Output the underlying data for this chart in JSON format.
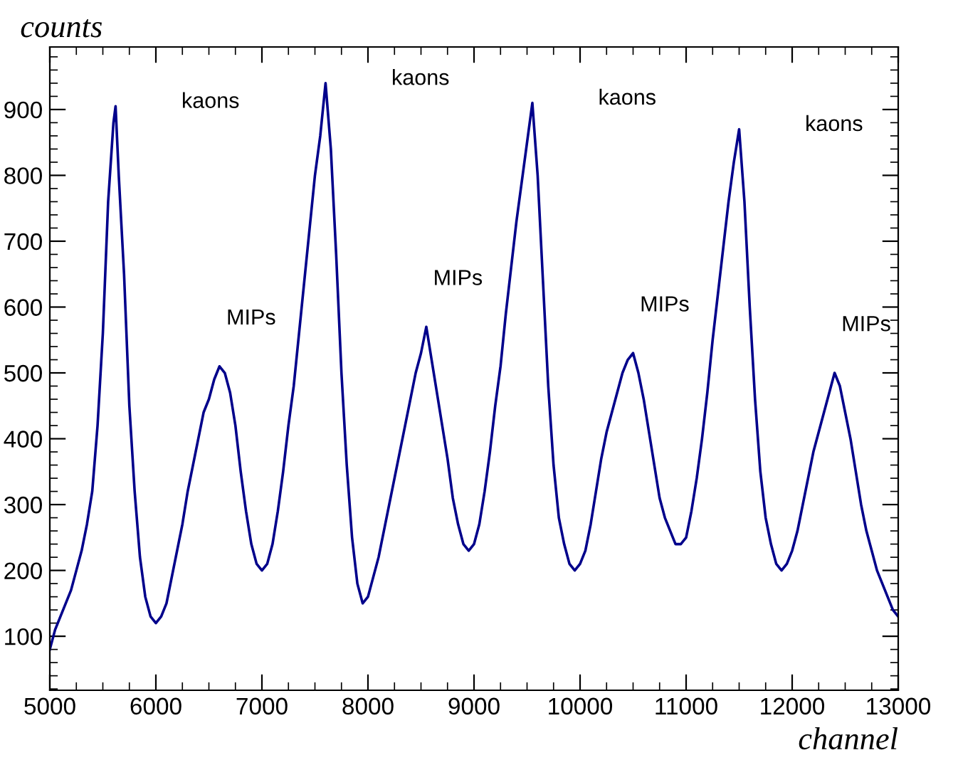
{
  "chart_data": {
    "type": "line",
    "xlabel": "channel",
    "ylabel": "counts",
    "xlim": [
      5000,
      13000
    ],
    "ylim": [
      18,
      995
    ],
    "xticks": [
      5000,
      6000,
      7000,
      8000,
      9000,
      10000,
      11000,
      12000,
      13000
    ],
    "yticks": [
      100,
      200,
      300,
      400,
      500,
      600,
      700,
      800,
      900
    ],
    "grid": false,
    "legend": false,
    "marker": "none",
    "line_style": "solid",
    "series": [
      {
        "color": "#00008b",
        "x": [
          5000,
          5050,
          5100,
          5150,
          5200,
          5250,
          5300,
          5350,
          5400,
          5450,
          5500,
          5550,
          5600,
          5620,
          5650,
          5700,
          5750,
          5800,
          5850,
          5900,
          5950,
          6000,
          6050,
          6100,
          6150,
          6200,
          6250,
          6300,
          6350,
          6400,
          6450,
          6500,
          6550,
          6600,
          6650,
          6700,
          6750,
          6800,
          6850,
          6900,
          6950,
          7000,
          7050,
          7100,
          7150,
          7200,
          7250,
          7300,
          7350,
          7400,
          7450,
          7500,
          7550,
          7600,
          7650,
          7700,
          7750,
          7800,
          7850,
          7900,
          7950,
          8000,
          8050,
          8100,
          8150,
          8200,
          8250,
          8300,
          8350,
          8400,
          8450,
          8500,
          8550,
          8600,
          8650,
          8700,
          8750,
          8800,
          8850,
          8900,
          8950,
          9000,
          9050,
          9100,
          9150,
          9200,
          9250,
          9300,
          9350,
          9400,
          9450,
          9500,
          9550,
          9600,
          9650,
          9700,
          9750,
          9800,
          9850,
          9900,
          9950,
          10000,
          10050,
          10100,
          10150,
          10200,
          10250,
          10300,
          10350,
          10400,
          10450,
          10500,
          10550,
          10600,
          10650,
          10700,
          10750,
          10800,
          10850,
          10900,
          10950,
          11000,
          11050,
          11100,
          11150,
          11200,
          11250,
          11300,
          11350,
          11400,
          11450,
          11500,
          11550,
          11600,
          11650,
          11700,
          11750,
          11800,
          11850,
          11900,
          11950,
          12000,
          12050,
          12100,
          12150,
          12200,
          12250,
          12300,
          12350,
          12400,
          12450,
          12500,
          12550,
          12600,
          12650,
          12700,
          12750,
          12800,
          12850,
          12900,
          12950,
          13000
        ],
        "values": [
          80,
          110,
          130,
          150,
          170,
          200,
          230,
          270,
          320,
          420,
          560,
          760,
          880,
          905,
          800,
          650,
          450,
          320,
          220,
          160,
          130,
          120,
          130,
          150,
          190,
          230,
          270,
          320,
          360,
          400,
          440,
          460,
          490,
          510,
          500,
          470,
          420,
          350,
          290,
          240,
          210,
          200,
          210,
          240,
          290,
          350,
          420,
          480,
          560,
          640,
          720,
          800,
          860,
          940,
          840,
          680,
          500,
          360,
          250,
          180,
          150,
          160,
          190,
          220,
          260,
          300,
          340,
          380,
          420,
          460,
          500,
          530,
          570,
          520,
          470,
          420,
          370,
          310,
          270,
          240,
          230,
          240,
          270,
          320,
          380,
          450,
          510,
          590,
          660,
          730,
          790,
          850,
          910,
          800,
          640,
          480,
          360,
          280,
          240,
          210,
          200,
          210,
          230,
          270,
          320,
          370,
          410,
          440,
          470,
          500,
          520,
          530,
          500,
          460,
          410,
          360,
          310,
          280,
          260,
          240,
          240,
          250,
          290,
          340,
          400,
          470,
          550,
          620,
          690,
          760,
          820,
          870,
          760,
          600,
          460,
          350,
          280,
          240,
          210,
          200,
          210,
          230,
          260,
          300,
          340,
          380,
          410,
          440,
          470,
          500,
          480,
          440,
          400,
          350,
          300,
          260,
          230,
          200,
          180,
          160,
          140,
          130
        ]
      }
    ],
    "annotations": [
      "kaons",
      "MIPs",
      "kaons",
      "MIPs",
      "kaons",
      "MIPs",
      "kaons",
      "MIPs"
    ]
  }
}
